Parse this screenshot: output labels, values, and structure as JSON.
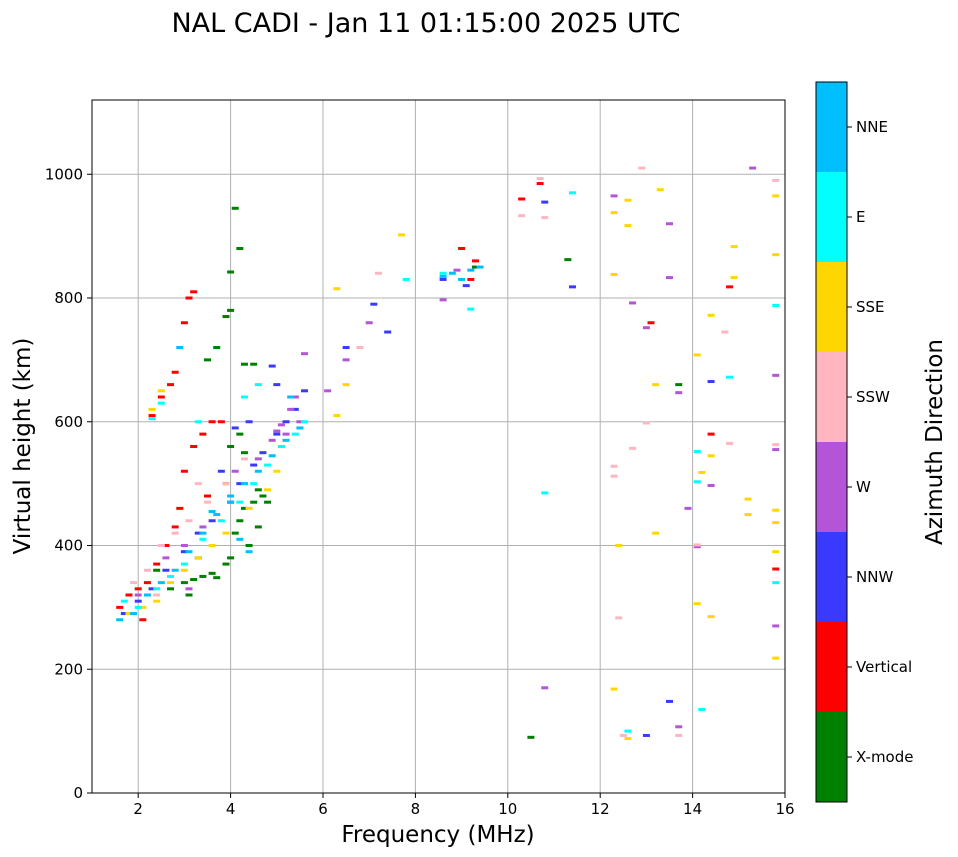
{
  "chart_data": {
    "type": "scatter",
    "title": "NAL CADI - Jan 11 01:15:00 2025 UTC",
    "xlabel": "Frequency (MHz)",
    "ylabel": "Virtual height (km)",
    "xlim": [
      1,
      16
    ],
    "ylim": [
      0,
      1120
    ],
    "xticks": [
      2,
      4,
      6,
      8,
      10,
      12,
      14,
      16
    ],
    "yticks": [
      0,
      200,
      400,
      600,
      800,
      1000
    ],
    "grid": true,
    "colorbar": {
      "label": "Azimuth Direction",
      "categories": [
        {
          "name": "X-mode",
          "color": "#008000"
        },
        {
          "name": "Vertical",
          "color": "#ff0000"
        },
        {
          "name": "NNW",
          "color": "#3a3aff"
        },
        {
          "name": "W",
          "color": "#b455d8"
        },
        {
          "name": "SSW",
          "color": "#ffb6c1"
        },
        {
          "name": "SSE",
          "color": "#ffd700"
        },
        {
          "name": "E",
          "color": "#00ffff"
        },
        {
          "name": "NNE",
          "color": "#00bfff"
        }
      ]
    },
    "series": [
      {
        "name": "X-mode",
        "points": [
          [
            2.4,
            360
          ],
          [
            2.7,
            330
          ],
          [
            3.0,
            340
          ],
          [
            3.2,
            345
          ],
          [
            3.4,
            350
          ],
          [
            3.6,
            355
          ],
          [
            3.7,
            348
          ],
          [
            3.9,
            370
          ],
          [
            4.0,
            380
          ],
          [
            4.1,
            420
          ],
          [
            4.2,
            440
          ],
          [
            4.3,
            460
          ],
          [
            4.5,
            470
          ],
          [
            4.6,
            490
          ],
          [
            4.7,
            480
          ],
          [
            4.3,
            550
          ],
          [
            4.2,
            580
          ],
          [
            3.5,
            700
          ],
          [
            3.7,
            720
          ],
          [
            3.9,
            770
          ],
          [
            4.0,
            780
          ],
          [
            4.1,
            945
          ],
          [
            4.2,
            880
          ],
          [
            4.0,
            842
          ],
          [
            4.3,
            693
          ],
          [
            4.5,
            693
          ],
          [
            4.0,
            560
          ],
          [
            10.5,
            90
          ],
          [
            11.3,
            862
          ],
          [
            13.7,
            660
          ],
          [
            9.3,
            850
          ],
          [
            4.4,
            400
          ],
          [
            3.3,
            380
          ],
          [
            3.1,
            320
          ],
          [
            4.6,
            430
          ],
          [
            4.8,
            470
          ]
        ]
      },
      {
        "name": "Vertical",
        "points": [
          [
            1.6,
            300
          ],
          [
            1.8,
            320
          ],
          [
            2.0,
            330
          ],
          [
            2.1,
            280
          ],
          [
            2.2,
            340
          ],
          [
            2.4,
            370
          ],
          [
            2.6,
            400
          ],
          [
            2.8,
            430
          ],
          [
            2.9,
            460
          ],
          [
            3.0,
            520
          ],
          [
            3.2,
            560
          ],
          [
            3.4,
            580
          ],
          [
            3.6,
            600
          ],
          [
            2.3,
            610
          ],
          [
            2.5,
            640
          ],
          [
            2.7,
            660
          ],
          [
            2.8,
            680
          ],
          [
            3.0,
            760
          ],
          [
            3.1,
            800
          ],
          [
            3.2,
            810
          ],
          [
            3.8,
            600
          ],
          [
            9.0,
            880
          ],
          [
            9.3,
            860
          ],
          [
            9.2,
            830
          ],
          [
            10.3,
            960
          ],
          [
            10.7,
            985
          ],
          [
            13.1,
            760
          ],
          [
            14.4,
            580
          ],
          [
            14.8,
            818
          ],
          [
            15.8,
            362
          ],
          [
            3.5,
            480
          ],
          [
            3.9,
            500
          ]
        ]
      },
      {
        "name": "NNW",
        "points": [
          [
            1.7,
            290
          ],
          [
            2.0,
            310
          ],
          [
            2.3,
            330
          ],
          [
            2.6,
            360
          ],
          [
            3.0,
            390
          ],
          [
            3.3,
            420
          ],
          [
            3.6,
            440
          ],
          [
            4.0,
            470
          ],
          [
            4.2,
            500
          ],
          [
            4.5,
            530
          ],
          [
            4.7,
            550
          ],
          [
            5.0,
            580
          ],
          [
            5.2,
            600
          ],
          [
            5.4,
            620
          ],
          [
            5.6,
            650
          ],
          [
            4.4,
            600
          ],
          [
            5.0,
            660
          ],
          [
            4.9,
            690
          ],
          [
            6.5,
            720
          ],
          [
            7.1,
            790
          ],
          [
            7.4,
            745
          ],
          [
            8.6,
            830
          ],
          [
            9.1,
            820
          ],
          [
            10.8,
            955
          ],
          [
            11.4,
            818
          ],
          [
            13.5,
            148
          ],
          [
            13.0,
            93
          ],
          [
            14.4,
            665
          ],
          [
            4.1,
            590
          ],
          [
            3.8,
            520
          ]
        ]
      },
      {
        "name": "W",
        "points": [
          [
            2.0,
            320
          ],
          [
            2.6,
            380
          ],
          [
            3.0,
            400
          ],
          [
            3.4,
            430
          ],
          [
            4.1,
            520
          ],
          [
            4.6,
            540
          ],
          [
            4.9,
            570
          ],
          [
            5.0,
            585
          ],
          [
            5.1,
            595
          ],
          [
            5.2,
            580
          ],
          [
            5.3,
            620
          ],
          [
            5.4,
            640
          ],
          [
            5.5,
            600
          ],
          [
            5.6,
            710
          ],
          [
            6.1,
            650
          ],
          [
            6.5,
            700
          ],
          [
            7.0,
            760
          ],
          [
            8.6,
            797
          ],
          [
            8.9,
            845
          ],
          [
            10.8,
            170
          ],
          [
            12.3,
            965
          ],
          [
            12.7,
            792
          ],
          [
            13.0,
            752
          ],
          [
            13.5,
            920
          ],
          [
            13.5,
            833
          ],
          [
            13.7,
            647
          ],
          [
            13.9,
            460
          ],
          [
            13.7,
            107
          ],
          [
            14.1,
            398
          ],
          [
            14.4,
            497
          ],
          [
            15.3,
            1010
          ],
          [
            15.8,
            675
          ],
          [
            15.8,
            555
          ],
          [
            15.8,
            270
          ],
          [
            3.1,
            330
          ]
        ]
      },
      {
        "name": "SSW",
        "points": [
          [
            1.9,
            340
          ],
          [
            2.2,
            360
          ],
          [
            2.5,
            400
          ],
          [
            2.8,
            420
          ],
          [
            3.1,
            440
          ],
          [
            3.5,
            470
          ],
          [
            3.9,
            500
          ],
          [
            4.3,
            540
          ],
          [
            6.8,
            720
          ],
          [
            7.2,
            840
          ],
          [
            10.3,
            933
          ],
          [
            10.7,
            993
          ],
          [
            10.8,
            930
          ],
          [
            12.3,
            528
          ],
          [
            12.3,
            512
          ],
          [
            12.4,
            283
          ],
          [
            12.5,
            93
          ],
          [
            12.9,
            1010
          ],
          [
            13.0,
            598
          ],
          [
            13.7,
            93
          ],
          [
            14.1,
            401
          ],
          [
            14.7,
            745
          ],
          [
            14.8,
            565
          ],
          [
            15.8,
            990
          ],
          [
            15.8,
            563
          ],
          [
            12.7,
            557
          ],
          [
            2.4,
            320
          ],
          [
            3.3,
            500
          ]
        ]
      },
      {
        "name": "SSE",
        "points": [
          [
            1.8,
            290
          ],
          [
            2.1,
            300
          ],
          [
            2.4,
            310
          ],
          [
            2.7,
            340
          ],
          [
            3.0,
            360
          ],
          [
            3.3,
            380
          ],
          [
            3.6,
            400
          ],
          [
            3.9,
            420
          ],
          [
            4.4,
            460
          ],
          [
            4.8,
            490
          ],
          [
            5.0,
            520
          ],
          [
            2.5,
            650
          ],
          [
            2.3,
            620
          ],
          [
            6.3,
            815
          ],
          [
            6.3,
            610
          ],
          [
            6.5,
            660
          ],
          [
            7.7,
            902
          ],
          [
            12.3,
            938
          ],
          [
            12.3,
            838
          ],
          [
            12.4,
            400
          ],
          [
            12.3,
            168
          ],
          [
            12.6,
            958
          ],
          [
            12.6,
            917
          ],
          [
            12.6,
            88
          ],
          [
            13.2,
            660
          ],
          [
            13.2,
            420
          ],
          [
            13.3,
            975
          ],
          [
            14.1,
            708
          ],
          [
            14.2,
            518
          ],
          [
            14.1,
            306
          ],
          [
            14.4,
            772
          ],
          [
            14.4,
            545
          ],
          [
            14.4,
            285
          ],
          [
            14.9,
            883
          ],
          [
            14.9,
            833
          ],
          [
            15.2,
            475
          ],
          [
            15.2,
            450
          ],
          [
            15.8,
            965
          ],
          [
            15.8,
            870
          ],
          [
            15.8,
            457
          ],
          [
            15.8,
            437
          ],
          [
            15.8,
            390
          ],
          [
            15.8,
            218
          ]
        ]
      },
      {
        "name": "E",
        "points": [
          [
            1.7,
            310
          ],
          [
            2.0,
            300
          ],
          [
            2.4,
            330
          ],
          [
            2.7,
            350
          ],
          [
            3.0,
            370
          ],
          [
            3.4,
            410
          ],
          [
            3.8,
            440
          ],
          [
            4.2,
            470
          ],
          [
            4.5,
            500
          ],
          [
            4.8,
            530
          ],
          [
            5.1,
            560
          ],
          [
            5.4,
            580
          ],
          [
            5.6,
            600
          ],
          [
            2.3,
            605
          ],
          [
            2.5,
            630
          ],
          [
            4.3,
            640
          ],
          [
            7.8,
            830
          ],
          [
            8.6,
            840
          ],
          [
            9.2,
            782
          ],
          [
            10.8,
            485
          ],
          [
            11.4,
            970
          ],
          [
            12.6,
            100
          ],
          [
            14.1,
            552
          ],
          [
            14.1,
            503
          ],
          [
            14.2,
            135
          ],
          [
            14.8,
            672
          ],
          [
            15.8,
            788
          ],
          [
            15.8,
            340
          ],
          [
            3.3,
            600
          ],
          [
            4.6,
            660
          ]
        ]
      },
      {
        "name": "NNE",
        "points": [
          [
            1.6,
            280
          ],
          [
            1.9,
            290
          ],
          [
            2.2,
            320
          ],
          [
            2.5,
            340
          ],
          [
            2.8,
            360
          ],
          [
            3.1,
            390
          ],
          [
            3.4,
            420
          ],
          [
            3.7,
            450
          ],
          [
            4.0,
            480
          ],
          [
            4.3,
            500
          ],
          [
            4.6,
            520
          ],
          [
            4.9,
            545
          ],
          [
            5.2,
            570
          ],
          [
            5.5,
            590
          ],
          [
            2.9,
            720
          ],
          [
            4.2,
            410
          ],
          [
            4.4,
            390
          ],
          [
            8.6,
            835
          ],
          [
            8.8,
            840
          ],
          [
            9.0,
            830
          ],
          [
            9.2,
            845
          ],
          [
            9.4,
            850
          ],
          [
            4.0,
            470
          ],
          [
            3.6,
            455
          ],
          [
            5.3,
            640
          ]
        ]
      }
    ]
  }
}
